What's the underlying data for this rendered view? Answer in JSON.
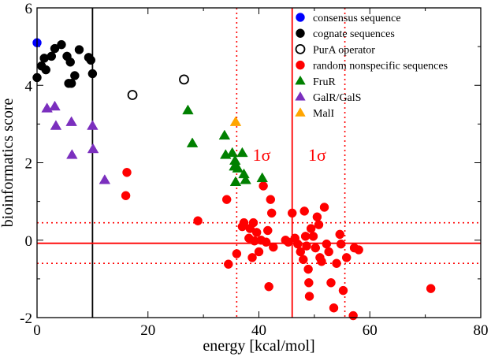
{
  "chart_data": {
    "type": "scatter",
    "xlabel": "energy [kcal/mol]",
    "ylabel": "bioinformatics score",
    "xlim": [
      0,
      80
    ],
    "ylim": [
      -2,
      6
    ],
    "xticks": [
      "0",
      "20",
      "40",
      "60",
      "80"
    ],
    "yticks": [
      "-2",
      "0",
      "2",
      "4",
      "6"
    ],
    "colors": {
      "blue": "#0000ff",
      "black": "#000000",
      "red": "#ff0000",
      "green": "#008000",
      "purple": "#7b2fbe",
      "orange": "#ffa500"
    },
    "series": [
      {
        "name": "consensus sequence",
        "marker": "circle",
        "color": "#0000ff",
        "filled": true,
        "points": [
          [
            0.0,
            5.1
          ]
        ]
      },
      {
        "name": "cognate sequences",
        "marker": "circle",
        "color": "#000000",
        "filled": true,
        "points": [
          [
            0.0,
            4.2
          ],
          [
            0.8,
            4.5
          ],
          [
            1.3,
            4.7
          ],
          [
            1.6,
            4.4
          ],
          [
            2.6,
            4.75
          ],
          [
            3.2,
            4.95
          ],
          [
            4.4,
            5.05
          ],
          [
            5.4,
            4.75
          ],
          [
            5.7,
            4.05
          ],
          [
            6.0,
            4.6
          ],
          [
            6.2,
            4.05
          ],
          [
            6.8,
            4.25
          ],
          [
            7.6,
            4.92
          ],
          [
            9.3,
            4.72
          ],
          [
            9.7,
            4.65
          ],
          [
            10.0,
            4.3
          ]
        ]
      },
      {
        "name": "PurA operator",
        "marker": "circle",
        "color": "#000000",
        "filled": false,
        "points": [
          [
            17.2,
            3.75
          ],
          [
            26.5,
            4.15
          ]
        ]
      },
      {
        "name": "random nonspecific sequences",
        "marker": "circle",
        "color": "#ff0000",
        "filled": true,
        "points": [
          [
            16.2,
            1.75
          ],
          [
            16.0,
            1.15
          ],
          [
            29.0,
            0.5
          ],
          [
            34.2,
            1.05
          ],
          [
            34.5,
            -0.62
          ],
          [
            36.0,
            -0.35
          ],
          [
            37.0,
            0.35
          ],
          [
            37.3,
            0.45
          ],
          [
            38.2,
            0.05
          ],
          [
            38.4,
            0.3
          ],
          [
            38.8,
            -0.45
          ],
          [
            39.0,
            0.45
          ],
          [
            39.2,
            -0.02
          ],
          [
            39.6,
            0.2
          ],
          [
            40.0,
            -0.3
          ],
          [
            40.4,
            0.0
          ],
          [
            40.8,
            1.4
          ],
          [
            41.3,
            -0.05
          ],
          [
            41.8,
            -1.2
          ],
          [
            41.6,
            0.25
          ],
          [
            42.1,
            1.05
          ],
          [
            42.3,
            0.7
          ],
          [
            42.6,
            -0.18
          ],
          [
            44.8,
            0.0
          ],
          [
            45.3,
            -0.05
          ],
          [
            46.0,
            0.7
          ],
          [
            46.5,
            0.05
          ],
          [
            47.0,
            -0.1
          ],
          [
            47.5,
            -0.3
          ],
          [
            48.0,
            -0.5
          ],
          [
            48.2,
            0.75
          ],
          [
            48.4,
            0.1
          ],
          [
            48.6,
            -0.15
          ],
          [
            48.9,
            -0.75
          ],
          [
            49.0,
            -1.1
          ],
          [
            49.1,
            -1.45
          ],
          [
            49.4,
            0.3
          ],
          [
            49.8,
            0.1
          ],
          [
            50.2,
            -0.2
          ],
          [
            50.5,
            0.6
          ],
          [
            50.8,
            0.4
          ],
          [
            51.0,
            -0.45
          ],
          [
            51.3,
            -0.55
          ],
          [
            51.8,
            0.85
          ],
          [
            52.2,
            -0.1
          ],
          [
            52.6,
            -0.3
          ],
          [
            53.0,
            -1.1
          ],
          [
            53.5,
            -1.75
          ],
          [
            54.0,
            -0.6
          ],
          [
            54.6,
            0.15
          ],
          [
            54.8,
            -0.1
          ],
          [
            55.2,
            -1.3
          ],
          [
            55.8,
            -0.45
          ],
          [
            57.0,
            -1.95
          ],
          [
            57.2,
            -0.2
          ],
          [
            58.0,
            -0.25
          ],
          [
            71.0,
            -1.25
          ]
        ]
      },
      {
        "name": "FruR",
        "marker": "triangle",
        "color": "#008000",
        "filled": true,
        "points": [
          [
            27.2,
            3.35
          ],
          [
            28.0,
            2.5
          ],
          [
            33.8,
            2.7
          ],
          [
            34.0,
            2.2
          ],
          [
            35.2,
            2.25
          ],
          [
            35.6,
            1.9
          ],
          [
            35.7,
            2.05
          ],
          [
            35.8,
            1.5
          ],
          [
            36.2,
            1.85
          ],
          [
            37.0,
            2.25
          ],
          [
            37.3,
            1.7
          ],
          [
            37.6,
            1.55
          ],
          [
            40.6,
            1.6
          ]
        ]
      },
      {
        "name": "GalR/GalS",
        "marker": "triangle",
        "color": "#7b2fbe",
        "filled": true,
        "points": [
          [
            1.8,
            3.4
          ],
          [
            3.2,
            3.45
          ],
          [
            3.4,
            2.95
          ],
          [
            6.2,
            3.05
          ],
          [
            6.3,
            2.2
          ],
          [
            10.0,
            2.95
          ],
          [
            10.1,
            2.35
          ],
          [
            12.2,
            1.55
          ]
        ]
      },
      {
        "name": "MalI",
        "marker": "triangle",
        "color": "#ffa500",
        "filled": true,
        "points": [
          [
            35.8,
            3.05
          ]
        ]
      }
    ],
    "reference_lines": [
      {
        "orientation": "vertical",
        "value": 10,
        "style": "solid",
        "color": "#000000"
      },
      {
        "orientation": "vertical",
        "value": 46,
        "style": "solid",
        "color": "#ff0000"
      },
      {
        "orientation": "vertical",
        "value": 36,
        "style": "dotted",
        "color": "#ff0000"
      },
      {
        "orientation": "vertical",
        "value": 55.5,
        "style": "dotted",
        "color": "#ff0000"
      },
      {
        "orientation": "horizontal",
        "value": -0.08,
        "style": "solid",
        "color": "#ff0000"
      },
      {
        "orientation": "horizontal",
        "value": 0.45,
        "style": "dotted",
        "color": "#ff0000"
      },
      {
        "orientation": "horizontal",
        "value": -0.6,
        "style": "dotted",
        "color": "#ff0000"
      }
    ],
    "annotations": [
      {
        "text": "1σ",
        "x": 40.5,
        "y": 2.05
      },
      {
        "text": "1σ",
        "x": 50.5,
        "y": 2.05
      }
    ],
    "legend_position": "top-right"
  }
}
